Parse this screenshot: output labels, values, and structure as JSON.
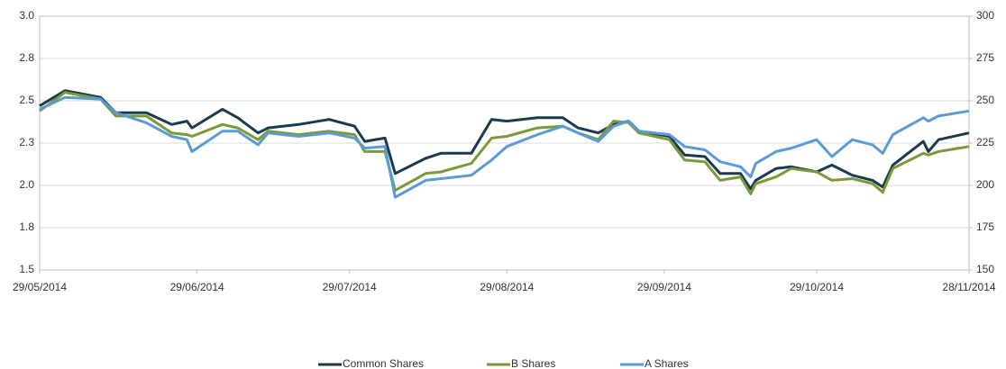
{
  "chart_data": {
    "type": "line",
    "x": [
      "29/05/2014",
      "03/06/2014",
      "10/06/2014",
      "13/06/2014",
      "19/06/2014",
      "24/06/2014",
      "27/06/2014",
      "28/06/2014",
      "04/07/2014",
      "07/07/2014",
      "11/07/2014",
      "13/07/2014",
      "19/07/2014",
      "25/07/2014",
      "30/07/2014",
      "01/08/2014",
      "05/08/2014",
      "07/08/2014",
      "13/08/2014",
      "16/08/2014",
      "22/08/2014",
      "26/08/2014",
      "29/08/2014",
      "04/09/2014",
      "09/09/2014",
      "12/09/2014",
      "16/09/2014",
      "19/09/2014",
      "22/09/2014",
      "24/09/2014",
      "30/09/2014",
      "03/10/2014",
      "07/10/2014",
      "10/10/2014",
      "14/10/2014",
      "16/10/2014",
      "17/10/2014",
      "21/10/2014",
      "24/10/2014",
      "29/10/2014",
      "01/11/2014",
      "05/11/2014",
      "09/11/2014",
      "11/11/2014",
      "13/11/2014",
      "19/11/2014",
      "20/11/2014",
      "22/11/2014",
      "28/11/2014"
    ],
    "series": [
      {
        "name": "Common Shares",
        "color": "#1c3a4f",
        "values": [
          2.47,
          2.56,
          2.52,
          2.43,
          2.43,
          2.36,
          2.38,
          2.34,
          2.45,
          2.4,
          2.31,
          2.34,
          2.36,
          2.39,
          2.35,
          2.26,
          2.28,
          2.07,
          2.16,
          2.19,
          2.19,
          2.39,
          2.38,
          2.4,
          2.4,
          2.34,
          2.31,
          2.36,
          2.38,
          2.32,
          2.29,
          2.18,
          2.17,
          2.07,
          2.07,
          1.98,
          2.03,
          2.1,
          2.11,
          2.08,
          2.12,
          2.06,
          2.03,
          1.99,
          2.12,
          2.26,
          2.2,
          2.27,
          2.31
        ]
      },
      {
        "name": "B Shares",
        "color": "#7a9a3a",
        "values": [
          2.44,
          2.55,
          2.51,
          2.41,
          2.41,
          2.31,
          2.3,
          2.29,
          2.36,
          2.34,
          2.27,
          2.32,
          2.3,
          2.32,
          2.3,
          2.2,
          2.2,
          1.97,
          2.07,
          2.08,
          2.13,
          2.28,
          2.29,
          2.34,
          2.35,
          2.31,
          2.27,
          2.38,
          2.37,
          2.31,
          2.27,
          2.15,
          2.14,
          2.03,
          2.05,
          1.95,
          2.01,
          2.05,
          2.1,
          2.08,
          2.03,
          2.04,
          2.01,
          1.96,
          2.1,
          2.19,
          2.18,
          2.2,
          2.23
        ]
      },
      {
        "name": "A Shares",
        "color": "#5b9bd5",
        "axis": "y2",
        "values": [
          245,
          252,
          251,
          243,
          237,
          229,
          227,
          220,
          232,
          232,
          224,
          231,
          229,
          231,
          228,
          222,
          223,
          193,
          203,
          204,
          206,
          215,
          223,
          230,
          235,
          231,
          226,
          235,
          238,
          232,
          230,
          223,
          221,
          214,
          211,
          205,
          213,
          220,
          222,
          227,
          217,
          227,
          224,
          219,
          230,
          240,
          238,
          241,
          244
        ]
      }
    ],
    "xlim": [
      "29/05/2014",
      "28/11/2014"
    ],
    "xticks": [
      "29/05/2014",
      "29/06/2014",
      "29/07/2014",
      "29/08/2014",
      "29/09/2014",
      "29/10/2014",
      "28/11/2014"
    ],
    "ylim": [
      1.5,
      3
    ],
    "yticks": [
      1.5,
      {
        "value": 1.75,
        "label": "1.8"
      },
      {
        "value": 2,
        "label": "2.0"
      },
      {
        "value": 2.25,
        "label": "2.3"
      },
      2.5,
      {
        "value": 2.75,
        "label": "2.8"
      },
      {
        "value": 3,
        "label": "3.0"
      }
    ],
    "y2lim": [
      150,
      300
    ],
    "y2ticks": [
      150,
      175,
      200,
      225,
      250,
      275,
      300
    ],
    "grid": true,
    "legend": "bottom"
  }
}
